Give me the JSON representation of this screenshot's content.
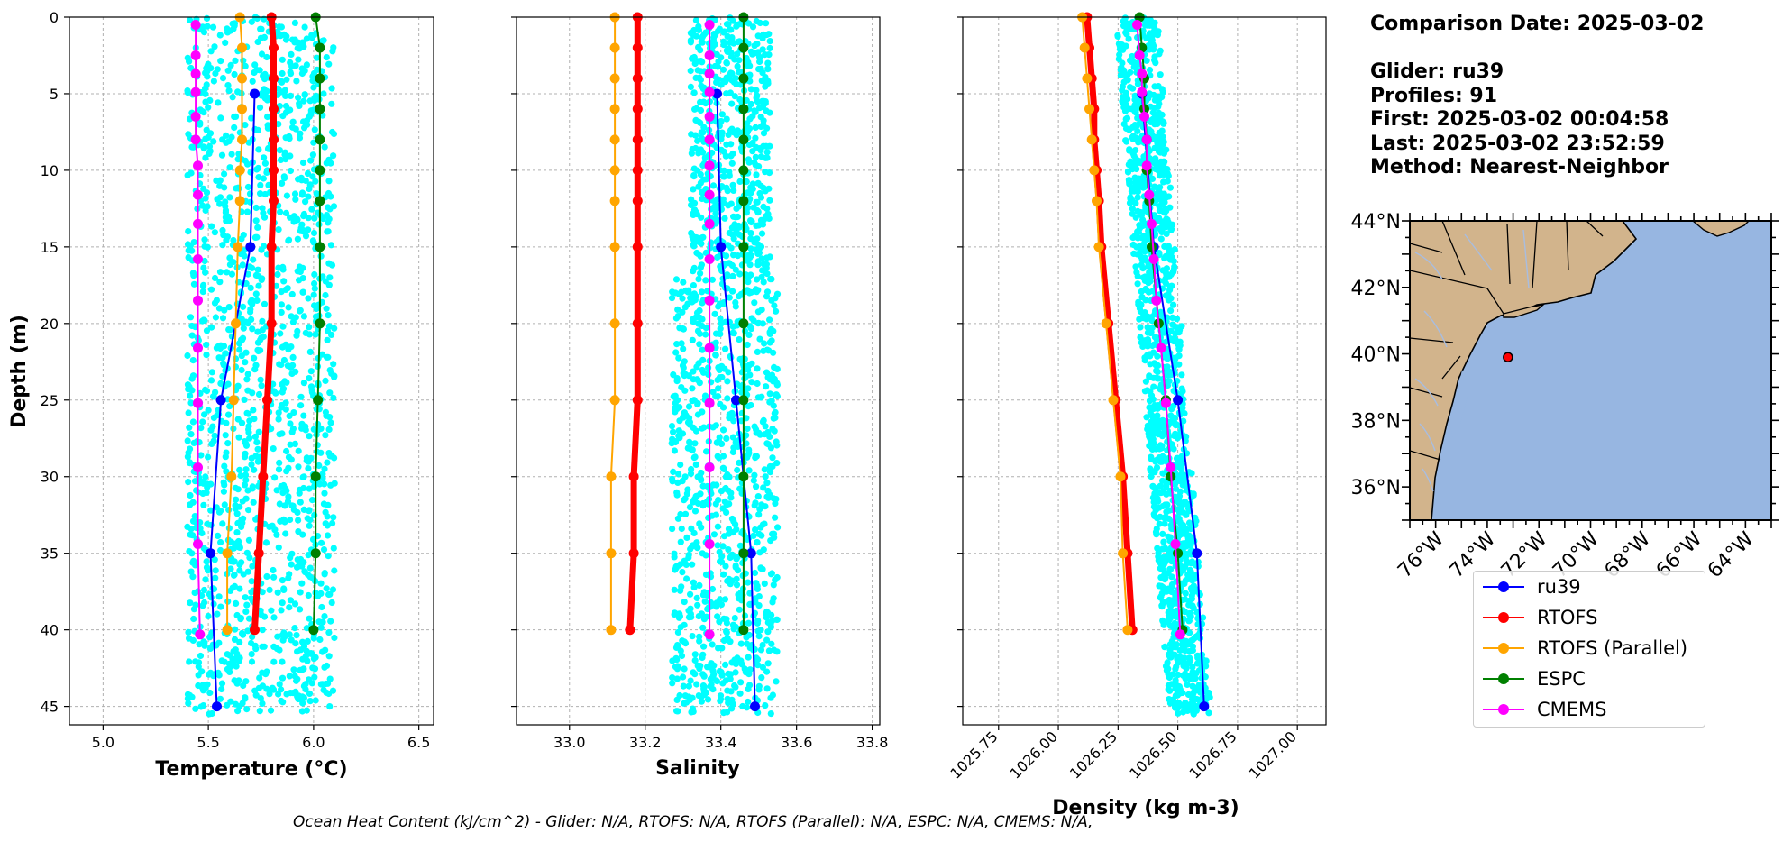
{
  "info": {
    "comparison_date": "Comparison Date: 2025-03-02",
    "glider": "Glider: ru39",
    "profiles": "Profiles: 91",
    "first": "First: 2025-03-02 00:04:58",
    "last": "Last: 2025-03-02 23:52:59",
    "method": "Method: Nearest-Neighbor"
  },
  "footer": "Ocean Heat Content (kJ/cm^2) - Glider: N/A,  RTOFS: N/A,  RTOFS (Parallel): N/A,  ESPC: N/A,  CMEMS: N/A,",
  "legend": [
    {
      "name": "ru39",
      "color": "#0000ff"
    },
    {
      "name": "RTOFS",
      "color": "#ff0000"
    },
    {
      "name": "RTOFS (Parallel)",
      "color": "#ffa500"
    },
    {
      "name": "ESPC",
      "color": "#008000"
    },
    {
      "name": "CMEMS",
      "color": "#ff00ff"
    }
  ],
  "map": {
    "lat_labels": [
      "44°N",
      "42°N",
      "40°N",
      "38°N",
      "36°N"
    ],
    "lon_labels": [
      "76°W",
      "74°W",
      "72°W",
      "70°W",
      "68°W",
      "66°W",
      "64°W"
    ],
    "extent": {
      "lon": [
        -77,
        -63
      ],
      "lat": [
        35,
        44
      ]
    },
    "land_color": "#d2b48c",
    "ocean_color": "#97b6e1",
    "glider_position": {
      "lon": -73.2,
      "lat": 39.9
    }
  },
  "chart_data": [
    {
      "type": "line",
      "xlabel": "Temperature (°C)",
      "ylabel": "Depth (m)",
      "xlim": [
        4.84,
        6.57
      ],
      "ylim": [
        46.2,
        0
      ],
      "xticks": [
        "5.0",
        "5.5",
        "6.0",
        "6.5"
      ],
      "xtick_values": [
        5.0,
        5.5,
        6.0,
        6.5
      ],
      "yticks": [
        "0",
        "5",
        "10",
        "15",
        "20",
        "25",
        "30",
        "35",
        "40",
        "45"
      ],
      "scatter": {
        "name": "glider observations",
        "color": "#00ffff",
        "x_range": [
          5.4,
          6.1
        ],
        "depth_range": [
          0,
          45.5
        ]
      },
      "series": [
        {
          "name": "ru39",
          "color": "#0000ff",
          "width": 2,
          "points": [
            [
              5.72,
              5
            ],
            [
              5.7,
              15
            ],
            [
              5.56,
              25
            ],
            [
              5.51,
              35
            ],
            [
              5.54,
              45
            ]
          ]
        },
        {
          "name": "RTOFS",
          "color": "#ff0000",
          "width": 7,
          "points": [
            [
              5.8,
              0
            ],
            [
              5.81,
              2
            ],
            [
              5.81,
              4
            ],
            [
              5.81,
              6
            ],
            [
              5.81,
              8
            ],
            [
              5.81,
              10
            ],
            [
              5.81,
              12
            ],
            [
              5.8,
              15
            ],
            [
              5.8,
              20
            ],
            [
              5.78,
              25
            ],
            [
              5.76,
              30
            ],
            [
              5.74,
              35
            ],
            [
              5.72,
              40
            ]
          ]
        },
        {
          "name": "RTOFS (Parallel)",
          "color": "#ffa500",
          "width": 2,
          "points": [
            [
              5.65,
              0
            ],
            [
              5.66,
              2
            ],
            [
              5.66,
              4
            ],
            [
              5.66,
              6
            ],
            [
              5.66,
              8
            ],
            [
              5.65,
              10
            ],
            [
              5.65,
              12
            ],
            [
              5.64,
              15
            ],
            [
              5.63,
              20
            ],
            [
              5.62,
              25
            ],
            [
              5.61,
              30
            ],
            [
              5.59,
              35
            ],
            [
              5.59,
              40
            ]
          ]
        },
        {
          "name": "ESPC",
          "color": "#008000",
          "width": 2,
          "points": [
            [
              6.01,
              0
            ],
            [
              6.03,
              2
            ],
            [
              6.03,
              4
            ],
            [
              6.03,
              6
            ],
            [
              6.03,
              8
            ],
            [
              6.03,
              10
            ],
            [
              6.03,
              12
            ],
            [
              6.03,
              15
            ],
            [
              6.03,
              20
            ],
            [
              6.02,
              25
            ],
            [
              6.01,
              30
            ],
            [
              6.01,
              35
            ],
            [
              6.0,
              40
            ]
          ]
        },
        {
          "name": "CMEMS",
          "color": "#ff00ff",
          "width": 2,
          "points": [
            [
              5.44,
              0.5
            ],
            [
              5.44,
              2.5
            ],
            [
              5.44,
              3.7
            ],
            [
              5.44,
              4.9
            ],
            [
              5.44,
              6.5
            ],
            [
              5.44,
              8.0
            ],
            [
              5.45,
              9.7
            ],
            [
              5.45,
              11.6
            ],
            [
              5.45,
              13.5
            ],
            [
              5.45,
              15.8
            ],
            [
              5.45,
              18.5
            ],
            [
              5.45,
              21.6
            ],
            [
              5.45,
              25.2
            ],
            [
              5.45,
              29.4
            ],
            [
              5.45,
              34.4
            ],
            [
              5.46,
              40.3
            ]
          ]
        }
      ]
    },
    {
      "type": "line",
      "xlabel": "Salinity",
      "xlim": [
        32.86,
        33.82
      ],
      "ylim": [
        46.2,
        0
      ],
      "xticks": [
        "33.0",
        "33.2",
        "33.4",
        "33.6",
        "33.8"
      ],
      "xtick_values": [
        33.0,
        33.2,
        33.4,
        33.6,
        33.8
      ],
      "scatter": {
        "name": "glider observations",
        "color": "#00ffff",
        "x_range": [
          33.27,
          33.55
        ],
        "depth_range": [
          0,
          45.5
        ]
      },
      "series": [
        {
          "name": "ru39",
          "color": "#0000ff",
          "width": 2,
          "points": [
            [
              33.39,
              5
            ],
            [
              33.4,
              15
            ],
            [
              33.44,
              25
            ],
            [
              33.48,
              35
            ],
            [
              33.49,
              45
            ]
          ]
        },
        {
          "name": "RTOFS",
          "color": "#ff0000",
          "width": 7,
          "points": [
            [
              33.18,
              0
            ],
            [
              33.18,
              2
            ],
            [
              33.18,
              4
            ],
            [
              33.18,
              6
            ],
            [
              33.18,
              8
            ],
            [
              33.18,
              10
            ],
            [
              33.18,
              12
            ],
            [
              33.18,
              15
            ],
            [
              33.18,
              20
            ],
            [
              33.18,
              25
            ],
            [
              33.17,
              30
            ],
            [
              33.17,
              35
            ],
            [
              33.16,
              40
            ]
          ]
        },
        {
          "name": "RTOFS (Parallel)",
          "color": "#ffa500",
          "width": 2,
          "points": [
            [
              33.12,
              0
            ],
            [
              33.12,
              2
            ],
            [
              33.12,
              4
            ],
            [
              33.12,
              6
            ],
            [
              33.12,
              8
            ],
            [
              33.12,
              10
            ],
            [
              33.12,
              12
            ],
            [
              33.12,
              15
            ],
            [
              33.12,
              20
            ],
            [
              33.12,
              25
            ],
            [
              33.11,
              30
            ],
            [
              33.11,
              35
            ],
            [
              33.11,
              40
            ]
          ]
        },
        {
          "name": "ESPC",
          "color": "#008000",
          "width": 2,
          "points": [
            [
              33.46,
              0
            ],
            [
              33.46,
              2
            ],
            [
              33.46,
              4
            ],
            [
              33.46,
              6
            ],
            [
              33.46,
              8
            ],
            [
              33.46,
              10
            ],
            [
              33.46,
              12
            ],
            [
              33.46,
              15
            ],
            [
              33.46,
              20
            ],
            [
              33.46,
              25
            ],
            [
              33.46,
              30
            ],
            [
              33.46,
              35
            ],
            [
              33.46,
              40
            ]
          ]
        },
        {
          "name": "CMEMS",
          "color": "#ff00ff",
          "width": 2,
          "points": [
            [
              33.37,
              0.5
            ],
            [
              33.37,
              2.5
            ],
            [
              33.37,
              3.7
            ],
            [
              33.37,
              4.9
            ],
            [
              33.37,
              6.5
            ],
            [
              33.37,
              8.0
            ],
            [
              33.37,
              9.7
            ],
            [
              33.37,
              11.6
            ],
            [
              33.37,
              13.5
            ],
            [
              33.37,
              15.8
            ],
            [
              33.37,
              18.5
            ],
            [
              33.37,
              21.6
            ],
            [
              33.37,
              25.2
            ],
            [
              33.37,
              29.4
            ],
            [
              33.37,
              34.4
            ],
            [
              33.37,
              40.3
            ]
          ]
        }
      ]
    },
    {
      "type": "line",
      "xlabel": "Density (kg m-3)",
      "xlim": [
        1025.6,
        1027.12
      ],
      "ylim": [
        46.2,
        0
      ],
      "xticks": [
        "1025.75",
        "1026.00",
        "1026.25",
        "1026.50",
        "1026.75",
        "1027.00"
      ],
      "xtick_values": [
        1025.75,
        1026.0,
        1026.25,
        1026.5,
        1026.75,
        1027.0
      ],
      "scatter": {
        "name": "glider observations",
        "color": "#00ffff",
        "x_range": [
          1026.24,
          1026.62
        ],
        "depth_range": [
          0,
          45.5
        ]
      },
      "series": [
        {
          "name": "ru39",
          "color": "#0000ff",
          "width": 2,
          "points": [
            [
              1026.35,
              5
            ],
            [
              1026.4,
              15
            ],
            [
              1026.5,
              25
            ],
            [
              1026.58,
              35
            ],
            [
              1026.61,
              45
            ]
          ]
        },
        {
          "name": "RTOFS",
          "color": "#ff0000",
          "width": 7,
          "points": [
            [
              1026.12,
              0
            ],
            [
              1026.13,
              2
            ],
            [
              1026.14,
              4
            ],
            [
              1026.15,
              6
            ],
            [
              1026.15,
              8
            ],
            [
              1026.16,
              10
            ],
            [
              1026.17,
              12
            ],
            [
              1026.18,
              15
            ],
            [
              1026.21,
              20
            ],
            [
              1026.24,
              25
            ],
            [
              1026.27,
              30
            ],
            [
              1026.29,
              35
            ],
            [
              1026.31,
              40
            ]
          ]
        },
        {
          "name": "RTOFS (Parallel)",
          "color": "#ffa500",
          "width": 2,
          "points": [
            [
              1026.1,
              0
            ],
            [
              1026.11,
              2
            ],
            [
              1026.12,
              4
            ],
            [
              1026.13,
              6
            ],
            [
              1026.14,
              8
            ],
            [
              1026.15,
              10
            ],
            [
              1026.16,
              12
            ],
            [
              1026.17,
              15
            ],
            [
              1026.2,
              20
            ],
            [
              1026.23,
              25
            ],
            [
              1026.26,
              30
            ],
            [
              1026.27,
              35
            ],
            [
              1026.29,
              40
            ]
          ]
        },
        {
          "name": "ESPC",
          "color": "#008000",
          "width": 2,
          "points": [
            [
              1026.34,
              0
            ],
            [
              1026.35,
              2
            ],
            [
              1026.36,
              4
            ],
            [
              1026.36,
              6
            ],
            [
              1026.37,
              8
            ],
            [
              1026.37,
              10
            ],
            [
              1026.38,
              12
            ],
            [
              1026.39,
              15
            ],
            [
              1026.42,
              20
            ],
            [
              1026.45,
              25
            ],
            [
              1026.47,
              30
            ],
            [
              1026.5,
              35
            ],
            [
              1026.52,
              40
            ]
          ]
        },
        {
          "name": "CMEMS",
          "color": "#ff00ff",
          "width": 2,
          "points": [
            [
              1026.33,
              0.5
            ],
            [
              1026.34,
              2.5
            ],
            [
              1026.35,
              3.7
            ],
            [
              1026.35,
              4.9
            ],
            [
              1026.36,
              6.5
            ],
            [
              1026.37,
              8.0
            ],
            [
              1026.37,
              9.7
            ],
            [
              1026.38,
              11.6
            ],
            [
              1026.39,
              13.5
            ],
            [
              1026.4,
              15.8
            ],
            [
              1026.41,
              18.5
            ],
            [
              1026.43,
              21.6
            ],
            [
              1026.45,
              25.2
            ],
            [
              1026.47,
              29.4
            ],
            [
              1026.49,
              34.4
            ],
            [
              1026.51,
              40.3
            ]
          ]
        }
      ]
    }
  ]
}
